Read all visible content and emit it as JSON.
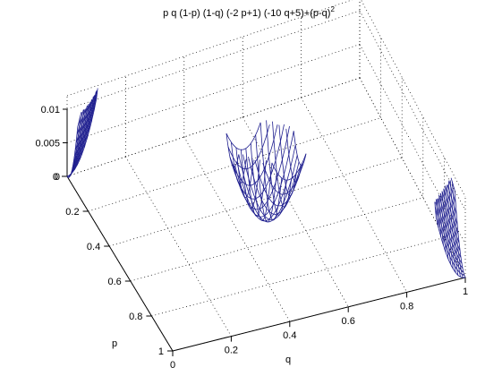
{
  "chart_data": {
    "type": "surface",
    "title": "p q (1-p) (1-q) (-2 p+1) (-10 q+5)+(p-q)",
    "title_exponent": "2",
    "function": "z = p*q*(1-p)*(1-q)*(-2*p+1)*(-10*q+5) + (p-q)^2",
    "xlabel": "q",
    "ylabel": "p",
    "zlabel": "",
    "q_ticks": [
      "0",
      "0.2",
      "0.4",
      "0.6",
      "0.8",
      "1"
    ],
    "p_ticks": [
      "0",
      "0.2",
      "0.4",
      "0.6",
      "0.8",
      "1"
    ],
    "z_ticks": [
      "0",
      "0.005",
      "0.01"
    ],
    "q_range": [
      0,
      1
    ],
    "p_range": [
      0,
      1
    ],
    "z_range": [
      0,
      0.012
    ],
    "grid": true,
    "mesh_color": "#1f1f8f",
    "mesh_regions": [
      {
        "name": "corner p=0,q=0",
        "p_range": [
          0,
          0.1
        ],
        "q_range": [
          0,
          0.1
        ]
      },
      {
        "name": "center",
        "p_range": [
          0.4,
          0.6
        ],
        "q_range": [
          0.4,
          0.6
        ]
      },
      {
        "name": "corner p=1,q=1",
        "p_range": [
          0.9,
          1
        ],
        "q_range": [
          0.9,
          1
        ]
      }
    ]
  }
}
